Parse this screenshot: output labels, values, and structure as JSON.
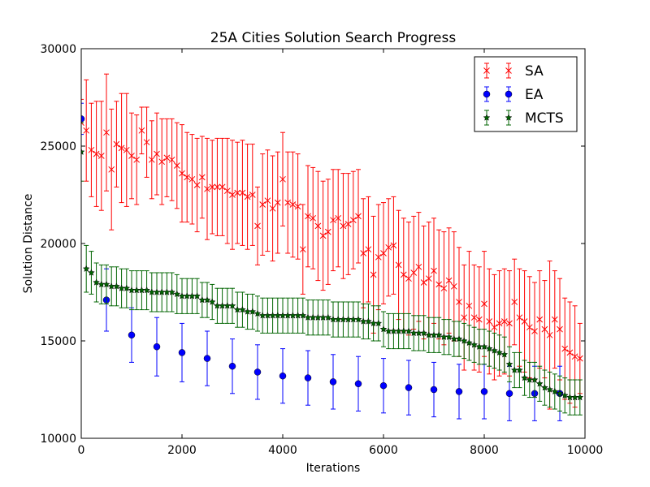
{
  "chart_data": {
    "type": "scatter",
    "title": "25A Cities Solution Search Progress",
    "xlabel": "Iterations",
    "ylabel": "Solution Distance",
    "xlim": [
      0,
      10000
    ],
    "ylim": [
      10000,
      30000
    ],
    "xticks": [
      0,
      2000,
      4000,
      6000,
      8000,
      10000
    ],
    "yticks": [
      10000,
      15000,
      20000,
      25000,
      30000
    ],
    "grid": false,
    "legend_position": "top-right",
    "series": [
      {
        "name": "SA",
        "color": "#ff0000",
        "marker": "x",
        "x": [
          0,
          100,
          200,
          300,
          400,
          500,
          600,
          700,
          800,
          900,
          1000,
          1100,
          1200,
          1300,
          1400,
          1500,
          1600,
          1700,
          1800,
          1900,
          2000,
          2100,
          2200,
          2300,
          2400,
          2500,
          2600,
          2700,
          2800,
          2900,
          3000,
          3100,
          3200,
          3300,
          3400,
          3500,
          3600,
          3700,
          3800,
          3900,
          4000,
          4100,
          4200,
          4300,
          4400,
          4500,
          4600,
          4700,
          4800,
          4900,
          5000,
          5100,
          5200,
          5300,
          5400,
          5500,
          5600,
          5700,
          5800,
          5900,
          6000,
          6100,
          6200,
          6300,
          6400,
          6500,
          6600,
          6700,
          6800,
          6900,
          7000,
          7100,
          7200,
          7300,
          7400,
          7500,
          7600,
          7700,
          7800,
          7900,
          8000,
          8100,
          8200,
          8300,
          8400,
          8500,
          8600,
          8700,
          8800,
          8900,
          9000,
          9100,
          9200,
          9300,
          9400,
          9500,
          9600,
          9700,
          9800,
          9900
        ],
        "y": [
          26200,
          25800,
          24800,
          24600,
          24500,
          25700,
          23800,
          25100,
          24900,
          24800,
          24500,
          24300,
          25800,
          25200,
          24300,
          24600,
          24200,
          24400,
          24300,
          24000,
          23600,
          23400,
          23300,
          23000,
          23400,
          22800,
          22900,
          22900,
          22900,
          22700,
          22500,
          22600,
          22600,
          22400,
          22500,
          20900,
          22000,
          22200,
          21800,
          22100,
          23300,
          22100,
          22000,
          21900,
          19700,
          21400,
          21300,
          20900,
          20400,
          20600,
          21200,
          21300,
          20900,
          21000,
          21200,
          21400,
          19500,
          19700,
          18400,
          19300,
          19500,
          19800,
          19900,
          18900,
          18400,
          18200,
          18500,
          18800,
          18000,
          18200,
          18600,
          17900,
          17700,
          18100,
          17800,
          17000,
          16200,
          16800,
          16200,
          16100,
          16900,
          16000,
          15700,
          15900,
          16000,
          15900,
          17000,
          16200,
          16000,
          15700,
          15500,
          16100,
          15600,
          15300,
          16100,
          15600,
          14600,
          14400,
          14200,
          14100
        ],
        "err": [
          1200,
          2600,
          2400,
          2700,
          2800,
          3000,
          3100,
          2200,
          2800,
          2900,
          2200,
          2300,
          1200,
          1800,
          2000,
          2100,
          2200,
          2000,
          2100,
          2200,
          2500,
          2300,
          2300,
          2400,
          2100,
          2600,
          2400,
          2500,
          2500,
          2700,
          2800,
          2600,
          2700,
          2700,
          2600,
          2000,
          2600,
          2600,
          2700,
          2600,
          2400,
          2600,
          2700,
          2700,
          2300,
          2600,
          2600,
          2800,
          2800,
          2700,
          2600,
          2500,
          2700,
          2600,
          2500,
          2400,
          2800,
          2700,
          3000,
          2700,
          2600,
          2500,
          2500,
          2800,
          2900,
          2900,
          2900,
          2800,
          2900,
          2900,
          2700,
          2800,
          2900,
          2700,
          2800,
          2800,
          2700,
          2800,
          2700,
          2700,
          2700,
          2700,
          2700,
          2700,
          2700,
          2700,
          2200,
          2500,
          2600,
          2600,
          2500,
          2500,
          2500,
          3800,
          2500,
          2600,
          2600,
          2600,
          2600,
          1800
        ]
      },
      {
        "name": "EA",
        "color": "#0000ff",
        "marker": "o",
        "x": [
          0,
          500,
          1000,
          1500,
          2000,
          2500,
          3000,
          3500,
          4000,
          4500,
          5000,
          5500,
          6000,
          6500,
          7000,
          7500,
          8000,
          8500,
          9000,
          9500
        ],
        "y": [
          26400,
          17100,
          15300,
          14700,
          14400,
          14100,
          13700,
          13400,
          13200,
          13100,
          12900,
          12800,
          12700,
          12600,
          12500,
          12400,
          12400,
          12300,
          12300,
          12300
        ],
        "err": [
          800,
          1600,
          1400,
          1500,
          1500,
          1400,
          1400,
          1400,
          1400,
          1400,
          1400,
          1400,
          1400,
          1400,
          1400,
          1400,
          1400,
          1400,
          1400,
          1400
        ]
      },
      {
        "name": "MCTS",
        "color": "#006400",
        "marker": "*",
        "x": [
          0,
          100,
          200,
          300,
          400,
          500,
          600,
          700,
          800,
          900,
          1000,
          1100,
          1200,
          1300,
          1400,
          1500,
          1600,
          1700,
          1800,
          1900,
          2000,
          2100,
          2200,
          2300,
          2400,
          2500,
          2600,
          2700,
          2800,
          2900,
          3000,
          3100,
          3200,
          3300,
          3400,
          3500,
          3600,
          3700,
          3800,
          3900,
          4000,
          4100,
          4200,
          4300,
          4400,
          4500,
          4600,
          4700,
          4800,
          4900,
          5000,
          5100,
          5200,
          5300,
          5400,
          5500,
          5600,
          5700,
          5800,
          5900,
          6000,
          6100,
          6200,
          6300,
          6400,
          6500,
          6600,
          6700,
          6800,
          6900,
          7000,
          7100,
          7200,
          7300,
          7400,
          7500,
          7600,
          7700,
          7800,
          7900,
          8000,
          8100,
          8200,
          8300,
          8400,
          8500,
          8600,
          8700,
          8800,
          8900,
          9000,
          9100,
          9200,
          9300,
          9400,
          9500,
          9600,
          9700,
          9800,
          9900
        ],
        "y": [
          24700,
          18700,
          18500,
          18000,
          17900,
          17900,
          17800,
          17800,
          17700,
          17700,
          17600,
          17600,
          17600,
          17600,
          17500,
          17500,
          17500,
          17500,
          17500,
          17400,
          17300,
          17300,
          17300,
          17300,
          17100,
          17100,
          17000,
          16800,
          16800,
          16800,
          16800,
          16600,
          16600,
          16500,
          16500,
          16400,
          16300,
          16300,
          16300,
          16300,
          16300,
          16300,
          16300,
          16300,
          16300,
          16200,
          16200,
          16200,
          16200,
          16200,
          16100,
          16100,
          16100,
          16100,
          16100,
          16100,
          16000,
          16000,
          15900,
          15900,
          15600,
          15500,
          15500,
          15500,
          15500,
          15500,
          15400,
          15400,
          15400,
          15300,
          15300,
          15300,
          15200,
          15200,
          15100,
          15100,
          15000,
          14900,
          14800,
          14700,
          14700,
          14600,
          14500,
          14400,
          14300,
          13800,
          13500,
          13500,
          13100,
          13000,
          13000,
          12800,
          12600,
          12500,
          12400,
          12300,
          12200,
          12100,
          12100,
          12100
        ],
        "err": [
          1500,
          1200,
          1100,
          1000,
          1000,
          1000,
          1000,
          1000,
          1000,
          1000,
          1000,
          1000,
          1000,
          1000,
          1000,
          1000,
          1000,
          1000,
          1000,
          1000,
          900,
          900,
          900,
          900,
          900,
          900,
          900,
          900,
          900,
          900,
          900,
          900,
          900,
          900,
          900,
          900,
          900,
          900,
          900,
          900,
          900,
          900,
          900,
          900,
          900,
          900,
          900,
          900,
          900,
          900,
          900,
          900,
          900,
          900,
          900,
          900,
          900,
          900,
          900,
          900,
          900,
          900,
          900,
          900,
          900,
          900,
          900,
          900,
          900,
          900,
          900,
          900,
          900,
          900,
          900,
          900,
          900,
          900,
          900,
          900,
          900,
          900,
          900,
          900,
          900,
          900,
          900,
          900,
          900,
          900,
          900,
          900,
          900,
          900,
          900,
          900,
          900,
          900,
          900,
          900
        ]
      }
    ]
  }
}
